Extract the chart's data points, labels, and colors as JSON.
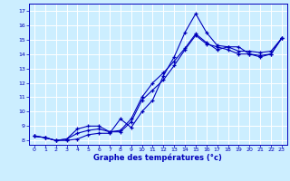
{
  "title": "",
  "xlabel": "Graphe des températures (°c)",
  "ylabel": "",
  "xlim": [
    -0.5,
    23.5
  ],
  "ylim": [
    7.7,
    17.5
  ],
  "yticks": [
    8,
    9,
    10,
    11,
    12,
    13,
    14,
    15,
    16,
    17
  ],
  "xticks": [
    0,
    1,
    2,
    3,
    4,
    5,
    6,
    7,
    8,
    9,
    10,
    11,
    12,
    13,
    14,
    15,
    16,
    17,
    18,
    19,
    20,
    21,
    22,
    23
  ],
  "bg_color": "#cceeff",
  "line_color": "#0000bb",
  "grid_color": "#aaddee",
  "line1_x": [
    0,
    1,
    2,
    3,
    4,
    5,
    6,
    7,
    8,
    9,
    10,
    11,
    12,
    13,
    14,
    15,
    16,
    17,
    18,
    19,
    20,
    21,
    22,
    23
  ],
  "line1_y": [
    8.3,
    8.2,
    8.0,
    8.0,
    8.1,
    8.4,
    8.5,
    8.5,
    9.5,
    8.9,
    10.0,
    10.8,
    12.5,
    13.8,
    15.5,
    16.8,
    15.5,
    14.6,
    14.5,
    14.5,
    14.0,
    13.8,
    14.0,
    15.1
  ],
  "line2_x": [
    0,
    1,
    2,
    3,
    4,
    5,
    6,
    7,
    8,
    9,
    10,
    11,
    12,
    13,
    14,
    15,
    16,
    17,
    18,
    19,
    20,
    21,
    22,
    23
  ],
  "line2_y": [
    8.3,
    8.2,
    8.0,
    8.1,
    8.5,
    8.7,
    8.8,
    8.6,
    8.6,
    9.3,
    10.8,
    11.5,
    12.2,
    13.2,
    14.3,
    15.3,
    14.7,
    14.5,
    14.3,
    14.0,
    14.0,
    13.9,
    14.0,
    15.1
  ],
  "line3_x": [
    0,
    1,
    2,
    3,
    4,
    5,
    6,
    7,
    8,
    9,
    10,
    11,
    12,
    13,
    14,
    15,
    16,
    17,
    18,
    19,
    20,
    21,
    22,
    23
  ],
  "line3_y": [
    8.3,
    8.2,
    8.0,
    8.1,
    8.8,
    9.0,
    9.0,
    8.6,
    8.7,
    9.5,
    11.0,
    12.0,
    12.7,
    13.5,
    14.4,
    15.4,
    14.8,
    14.3,
    14.5,
    14.2,
    14.2,
    14.1,
    14.2,
    15.1
  ]
}
